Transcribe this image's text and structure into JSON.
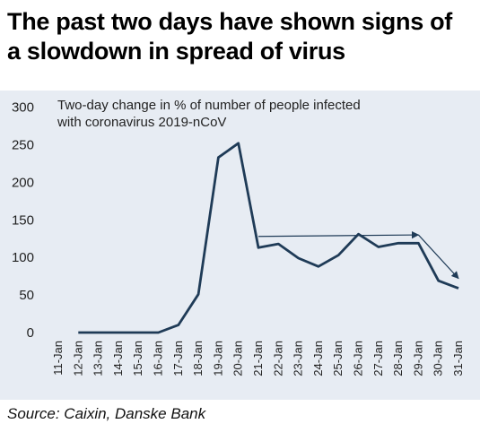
{
  "header": {
    "title_line1": "The past two days have shown signs of",
    "title_line2": "a slowdown in spread of virus"
  },
  "footer": {
    "source": "Source: Caixin, Danske Bank"
  },
  "colors": {
    "line": "#1f3b57",
    "panel": "#e7ecf3",
    "text": "#222222"
  },
  "chart_data": {
    "type": "line",
    "title_line1": "Two-day change in % of number of people infected",
    "title_line2": "with coronavirus 2019-nCoV",
    "categories": [
      "11-Jan",
      "12-Jan",
      "13-Jan",
      "14-Jan",
      "15-Jan",
      "16-Jan",
      "17-Jan",
      "18-Jan",
      "19-Jan",
      "20-Jan",
      "21-Jan",
      "22-Jan",
      "23-Jan",
      "24-Jan",
      "25-Jan",
      "26-Jan",
      "27-Jan",
      "28-Jan",
      "29-Jan",
      "30-Jan",
      "31-Jan"
    ],
    "values": [
      null,
      0,
      0,
      0,
      0,
      0,
      10,
      51,
      233,
      252,
      113,
      118,
      99,
      88,
      103,
      131,
      114,
      119,
      119,
      69,
      59
    ],
    "ylim": [
      0,
      300
    ],
    "yticks": [
      0,
      50,
      100,
      150,
      200,
      250,
      300
    ],
    "grid": false,
    "annotations": [
      {
        "type": "arrow",
        "from": {
          "x": "21-Jan",
          "y": 128
        },
        "to": {
          "x": "29-Jan",
          "y": 130
        }
      },
      {
        "type": "arrow",
        "from": {
          "x": "29-Jan",
          "y": 130
        },
        "to": {
          "x": "31-Jan",
          "y": 72
        }
      }
    ]
  }
}
